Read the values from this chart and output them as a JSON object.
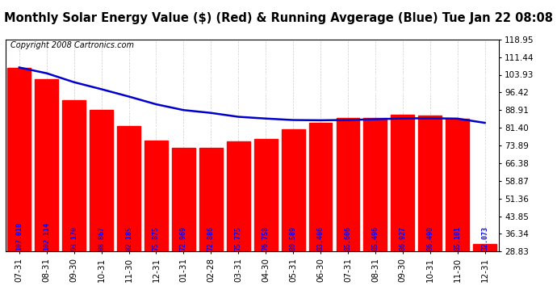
{
  "title": "Monthly Solar Energy Value ($) (Red) & Running Avgerage (Blue) Tue Jan 22 08:08",
  "copyright": "Copyright 2008 Cartronics.com",
  "categories": [
    "07-31",
    "08-31",
    "09-30",
    "10-31",
    "11-30",
    "12-31",
    "01-31",
    "02-28",
    "03-31",
    "04-30",
    "05-31",
    "06-30",
    "07-31",
    "08-31",
    "09-30",
    "10-31",
    "11-30",
    "12-31"
  ],
  "bar_values": [
    107.01,
    102.114,
    93.17,
    88.867,
    82.185,
    75.875,
    72.969,
    72.886,
    75.775,
    76.758,
    80.589,
    83.406,
    85.606,
    85.496,
    86.927,
    86.49,
    85.101,
    32.073
  ],
  "running_avg": [
    107.01,
    104.562,
    100.765,
    97.79,
    94.669,
    91.371,
    88.913,
    87.71,
    86.059,
    85.315,
    84.687,
    84.577,
    84.722,
    85.01,
    85.39,
    85.447,
    85.282,
    83.5
  ],
  "bar_color": "#ff0000",
  "line_color": "#0000cc",
  "label_color": "#0000ff",
  "bg_color": "#ffffff",
  "title_bg": "#d0d0d0",
  "grid_color": "#ffffff",
  "ytick_labels": [
    "28.83",
    "36.34",
    "43.85",
    "51.36",
    "58.87",
    "66.38",
    "73.89",
    "81.40",
    "88.91",
    "96.42",
    "103.93",
    "111.44",
    "118.95"
  ],
  "ytick_values": [
    28.83,
    36.34,
    43.85,
    51.36,
    58.87,
    66.38,
    73.89,
    81.4,
    88.91,
    96.42,
    103.93,
    111.44,
    118.95
  ],
  "ymin": 28.83,
  "ymax": 118.95,
  "title_fontsize": 10.5,
  "copyright_fontsize": 7,
  "bar_label_fontsize": 6,
  "tick_fontsize": 7.5
}
